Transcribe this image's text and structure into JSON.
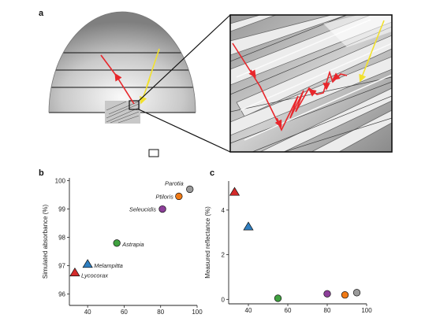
{
  "panels": {
    "a": "a",
    "b": "b",
    "c": "c"
  },
  "colors": {
    "light_path": "#e8262b",
    "incident_light": "#f2e12e",
    "axis": "#222222"
  },
  "chart_data": [
    {
      "type": "scatter",
      "panel": "b",
      "title": "",
      "ylabel": "Simulated absorbance (%)",
      "xlabel": "",
      "xlim": [
        30,
        100
      ],
      "ylim": [
        95.6,
        100.1
      ],
      "x_ticks": [
        "40",
        "60",
        "80",
        "100"
      ],
      "y_ticks": [
        "96",
        "97",
        "98",
        "99",
        "100"
      ],
      "grid": false,
      "points": [
        {
          "species": "Parotia",
          "x": 96,
          "y": 99.7,
          "marker": "circle",
          "color": "#9a9a9a"
        },
        {
          "species": "Ptiloris",
          "x": 90,
          "y": 99.45,
          "marker": "circle",
          "color": "#f07a16"
        },
        {
          "species": "Seleucidis",
          "x": 81,
          "y": 99.0,
          "marker": "circle",
          "color": "#8d3f9a"
        },
        {
          "species": "Astrapia",
          "x": 56,
          "y": 97.8,
          "marker": "circle",
          "color": "#3fa13f"
        },
        {
          "species": "Melampitta",
          "x": 40,
          "y": 97.05,
          "marker": "triangle",
          "color": "#2f7fc1"
        },
        {
          "species": "Lycocorax",
          "x": 33,
          "y": 96.75,
          "marker": "triangle",
          "color": "#d42a2a"
        }
      ]
    },
    {
      "type": "scatter",
      "panel": "c",
      "title": "",
      "ylabel": "Measured reflectance (%)",
      "xlabel": "",
      "xlim": [
        30,
        100
      ],
      "ylim": [
        -0.2,
        5.3
      ],
      "x_ticks": [
        "40",
        "60",
        "80",
        "100"
      ],
      "y_ticks": [
        "0",
        "2",
        "4"
      ],
      "grid": false,
      "points": [
        {
          "species": "Lycocorax",
          "x": 33,
          "y": 4.8,
          "marker": "triangle",
          "color": "#d42a2a"
        },
        {
          "species": "Melampitta",
          "x": 40,
          "y": 3.25,
          "marker": "triangle",
          "color": "#2f7fc1"
        },
        {
          "species": "Astrapia",
          "x": 55,
          "y": 0.05,
          "marker": "circle",
          "color": "#3fa13f"
        },
        {
          "species": "Seleucidis",
          "x": 80,
          "y": 0.25,
          "marker": "circle",
          "color": "#8d3f9a"
        },
        {
          "species": "Ptiloris",
          "x": 89,
          "y": 0.2,
          "marker": "circle",
          "color": "#f07a16"
        },
        {
          "species": "Parotia",
          "x": 95,
          "y": 0.3,
          "marker": "circle",
          "color": "#9a9a9a"
        }
      ]
    }
  ]
}
